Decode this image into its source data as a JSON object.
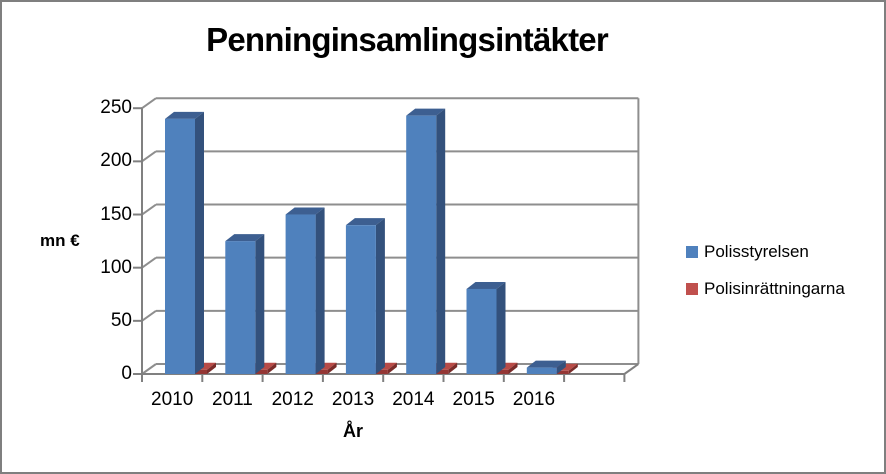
{
  "chart_data": {
    "type": "bar",
    "variant": "3d-clustered-column",
    "title": "Penninginsamlingsintäkter",
    "xlabel": "År",
    "ylabel": "mn €",
    "categories": [
      "2010",
      "2011",
      "2012",
      "2013",
      "2014",
      "2015",
      "2016"
    ],
    "series": [
      {
        "name": "Polisstyrelsen",
        "values": [
          240,
          125,
          150,
          140,
          243,
          80,
          6
        ],
        "color": "#4F81BD",
        "color_front": "#4F81BD",
        "color_top": "#3D5F91",
        "color_side": "#33517C"
      },
      {
        "name": "Polisinrättningarna",
        "values": [
          4,
          4,
          4,
          4,
          4,
          4,
          3
        ],
        "color": "#C0504D",
        "color_front": "#943634",
        "color_top": "#B84B47",
        "color_side": "#7A2C2A"
      }
    ],
    "ylim": [
      0,
      250
    ],
    "yticks": [
      0,
      50,
      100,
      150,
      200,
      250
    ],
    "grid": true,
    "legend_position": "right",
    "empty_trailing_slot": true
  },
  "colors": {
    "grid": "#8E8E8E",
    "axis": "#808080",
    "frame_border": "#7F7F7F",
    "text": "#000000",
    "background": "#FFFFFF"
  }
}
